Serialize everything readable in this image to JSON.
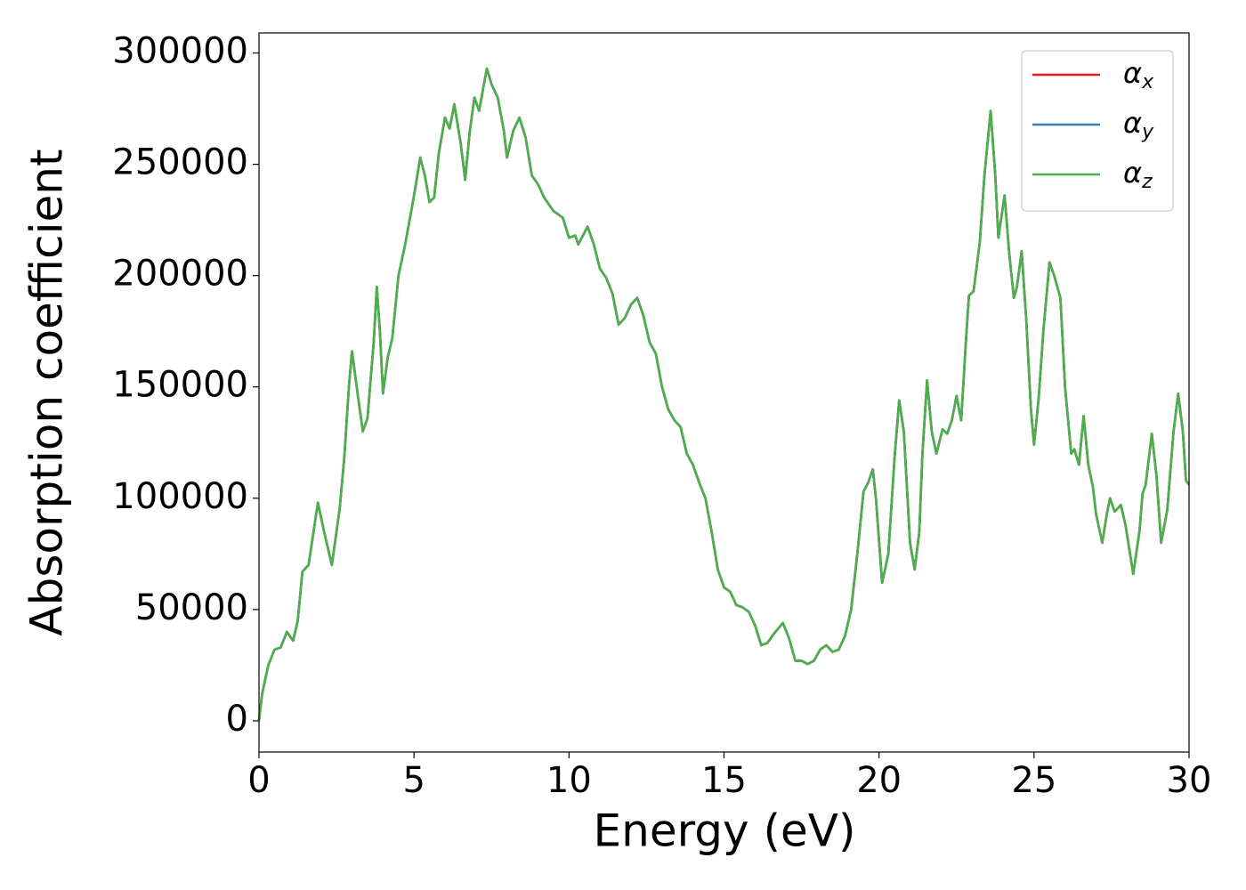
{
  "chart_data": {
    "type": "line",
    "xlabel": "Energy (eV)",
    "ylabel": "Absorption coefficient",
    "xlim": [
      0,
      30
    ],
    "ylim": [
      -14000,
      309000
    ],
    "xticks": [
      0,
      5,
      10,
      15,
      20,
      25,
      30
    ],
    "yticks": [
      0,
      50000,
      100000,
      150000,
      200000,
      250000,
      300000
    ],
    "legend": "upper right",
    "x": [
      0,
      0.1,
      0.3,
      0.5,
      0.7,
      0.9,
      1.1,
      1.25,
      1.4,
      1.6,
      1.9,
      2.1,
      2.35,
      2.6,
      2.75,
      2.9,
      3.0,
      3.2,
      3.35,
      3.5,
      3.7,
      3.8,
      3.9,
      4.0,
      4.15,
      4.3,
      4.5,
      4.7,
      4.9,
      5.05,
      5.2,
      5.35,
      5.5,
      5.65,
      5.8,
      6.0,
      6.15,
      6.3,
      6.5,
      6.65,
      6.8,
      6.95,
      7.1,
      7.35,
      7.5,
      7.7,
      7.9,
      8.0,
      8.2,
      8.4,
      8.6,
      8.8,
      9.0,
      9.2,
      9.5,
      9.8,
      10.0,
      10.2,
      10.3,
      10.6,
      10.8,
      11.0,
      11.2,
      11.4,
      11.6,
      11.8,
      12.0,
      12.2,
      12.4,
      12.6,
      12.8,
      13.0,
      13.2,
      13.4,
      13.6,
      13.8,
      14.0,
      14.2,
      14.4,
      14.6,
      14.8,
      15.0,
      15.2,
      15.4,
      15.6,
      15.8,
      16.0,
      16.2,
      16.4,
      16.6,
      16.9,
      17.1,
      17.3,
      17.5,
      17.7,
      17.9,
      18.1,
      18.3,
      18.5,
      18.7,
      18.9,
      19.1,
      19.3,
      19.5,
      19.65,
      19.8,
      19.9,
      20.1,
      20.3,
      20.5,
      20.65,
      20.8,
      21.0,
      21.15,
      21.3,
      21.4,
      21.55,
      21.7,
      21.85,
      22.05,
      22.2,
      22.35,
      22.5,
      22.65,
      22.8,
      22.9,
      23.05,
      23.25,
      23.4,
      23.6,
      23.75,
      23.85,
      24.05,
      24.2,
      24.35,
      24.45,
      24.6,
      24.75,
      24.9,
      25.0,
      25.15,
      25.3,
      25.5,
      25.65,
      25.85,
      26.0,
      26.2,
      26.3,
      26.45,
      26.6,
      26.75,
      26.9,
      27.0,
      27.2,
      27.35,
      27.45,
      27.6,
      27.8,
      27.95,
      28.2,
      28.4,
      28.5,
      28.6,
      28.8,
      28.95,
      29.1,
      29.3,
      29.5,
      29.65,
      29.8,
      29.9,
      30.0
    ],
    "series": [
      {
        "name": "αx",
        "color": "#e41a1c",
        "values": [
          0,
          12000,
          25000,
          32000,
          33000,
          40000,
          36000,
          45000,
          67000,
          70000,
          98000,
          85000,
          70000,
          95000,
          118000,
          150000,
          166000,
          145000,
          130000,
          136000,
          170000,
          195000,
          175000,
          147000,
          163000,
          172000,
          200000,
          213000,
          228000,
          240000,
          253000,
          245000,
          233000,
          235000,
          255000,
          271000,
          266000,
          277000,
          260000,
          243000,
          265000,
          280000,
          274000,
          293000,
          286000,
          280000,
          265000,
          253000,
          265000,
          271000,
          262000,
          245000,
          241000,
          235000,
          229000,
          226000,
          217000,
          218000,
          214000,
          222000,
          214000,
          203000,
          199000,
          192000,
          178000,
          181000,
          187000,
          190000,
          182000,
          170000,
          165000,
          150000,
          140000,
          135000,
          132000,
          120000,
          115000,
          107000,
          100000,
          85000,
          68000,
          60000,
          58000,
          52000,
          51000,
          49000,
          43000,
          34000,
          35000,
          39000,
          44000,
          37000,
          27000,
          27000,
          25500,
          27000,
          32000,
          34000,
          31000,
          32000,
          38000,
          50000,
          75000,
          103000,
          107000,
          113000,
          100000,
          62000,
          75000,
          118000,
          144000,
          130000,
          80000,
          68000,
          85000,
          120000,
          153000,
          130000,
          120000,
          131000,
          129000,
          135000,
          146000,
          135000,
          170000,
          191000,
          193000,
          215000,
          245000,
          274000,
          245000,
          217000,
          236000,
          210000,
          190000,
          195000,
          211000,
          180000,
          140000,
          124000,
          145000,
          175000,
          206000,
          200000,
          190000,
          150000,
          120000,
          122000,
          115000,
          137000,
          115000,
          105000,
          93000,
          80000,
          93000,
          100000,
          94000,
          97000,
          88000,
          66000,
          85000,
          102000,
          106000,
          129000,
          110000,
          80000,
          95000,
          130000,
          147000,
          130000,
          108000,
          106000
        ]
      },
      {
        "name": "αy",
        "color": "#377eb8",
        "values": [
          0,
          12000,
          25000,
          32000,
          33000,
          40000,
          36000,
          45000,
          67000,
          70000,
          98000,
          85000,
          70000,
          95000,
          118000,
          150000,
          166000,
          145000,
          130000,
          136000,
          170000,
          195000,
          175000,
          147000,
          163000,
          172000,
          200000,
          213000,
          228000,
          240000,
          253000,
          245000,
          233000,
          235000,
          255000,
          271000,
          266000,
          277000,
          260000,
          243000,
          265000,
          280000,
          274000,
          293000,
          286000,
          280000,
          265000,
          253000,
          265000,
          271000,
          262000,
          245000,
          241000,
          235000,
          229000,
          226000,
          217000,
          218000,
          214000,
          222000,
          214000,
          203000,
          199000,
          192000,
          178000,
          181000,
          187000,
          190000,
          182000,
          170000,
          165000,
          150000,
          140000,
          135000,
          132000,
          120000,
          115000,
          107000,
          100000,
          85000,
          68000,
          60000,
          58000,
          52000,
          51000,
          49000,
          43000,
          34000,
          35000,
          39000,
          44000,
          37000,
          27000,
          27000,
          25500,
          27000,
          32000,
          34000,
          31000,
          32000,
          38000,
          50000,
          75000,
          103000,
          107000,
          113000,
          100000,
          62000,
          75000,
          118000,
          144000,
          130000,
          80000,
          68000,
          85000,
          120000,
          153000,
          130000,
          120000,
          131000,
          129000,
          135000,
          146000,
          135000,
          170000,
          191000,
          193000,
          215000,
          245000,
          274000,
          245000,
          217000,
          236000,
          210000,
          190000,
          195000,
          211000,
          180000,
          140000,
          124000,
          145000,
          175000,
          206000,
          200000,
          190000,
          150000,
          120000,
          122000,
          115000,
          137000,
          115000,
          105000,
          93000,
          80000,
          93000,
          100000,
          94000,
          97000,
          88000,
          66000,
          85000,
          102000,
          106000,
          129000,
          110000,
          80000,
          95000,
          130000,
          147000,
          130000,
          108000,
          106000
        ]
      },
      {
        "name": "αz",
        "color": "#4daf4a",
        "values": [
          0,
          12000,
          25000,
          32000,
          33000,
          40000,
          36000,
          45000,
          67000,
          70000,
          98000,
          85000,
          70000,
          95000,
          118000,
          150000,
          166000,
          145000,
          130000,
          136000,
          170000,
          195000,
          175000,
          147000,
          163000,
          172000,
          200000,
          213000,
          228000,
          240000,
          253000,
          245000,
          233000,
          235000,
          255000,
          271000,
          266000,
          277000,
          260000,
          243000,
          265000,
          280000,
          274000,
          293000,
          286000,
          280000,
          265000,
          253000,
          265000,
          271000,
          262000,
          245000,
          241000,
          235000,
          229000,
          226000,
          217000,
          218000,
          214000,
          222000,
          214000,
          203000,
          199000,
          192000,
          178000,
          181000,
          187000,
          190000,
          182000,
          170000,
          165000,
          150000,
          140000,
          135000,
          132000,
          120000,
          115000,
          107000,
          100000,
          85000,
          68000,
          60000,
          58000,
          52000,
          51000,
          49000,
          43000,
          34000,
          35000,
          39000,
          44000,
          37000,
          27000,
          27000,
          25500,
          27000,
          32000,
          34000,
          31000,
          32000,
          38000,
          50000,
          75000,
          103000,
          107000,
          113000,
          100000,
          62000,
          75000,
          118000,
          144000,
          130000,
          80000,
          68000,
          85000,
          120000,
          153000,
          130000,
          120000,
          131000,
          129000,
          135000,
          146000,
          135000,
          170000,
          191000,
          193000,
          215000,
          245000,
          274000,
          245000,
          217000,
          236000,
          210000,
          190000,
          195000,
          211000,
          180000,
          140000,
          124000,
          145000,
          175000,
          206000,
          200000,
          190000,
          150000,
          120000,
          122000,
          115000,
          137000,
          115000,
          105000,
          93000,
          80000,
          93000,
          100000,
          94000,
          97000,
          88000,
          66000,
          85000,
          102000,
          106000,
          129000,
          110000,
          80000,
          95000,
          130000,
          147000,
          130000,
          108000,
          106000
        ]
      }
    ]
  }
}
